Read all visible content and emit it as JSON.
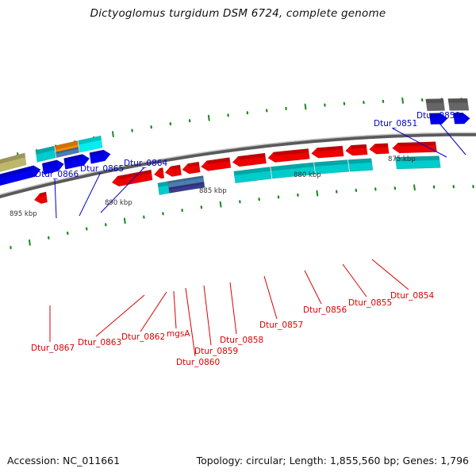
{
  "title": "Dictyoglomus turgidum DSM 6724, complete genome",
  "footer": {
    "accession": "Accession: NC_011661",
    "summary": "Topology: circular; Length: 1,855,560 bp; Genes: 1,796"
  },
  "colors": {
    "backbone": "#7a7a7a",
    "forward_cds": "#0000ee",
    "reverse_cds": "#ee0000",
    "tick": "#1a8a1a",
    "label_forward": "#0000cc",
    "label_reverse": "#dd0000",
    "cog_cyan": "#00cccc",
    "cog_light_cyan": "#00eeee",
    "cog_orange": "#ff8c00",
    "cog_steel": "#4a7fb0",
    "cog_indigo": "#3a3a90",
    "cog_olive": "#bdb76b",
    "cog_gray": "#666666"
  },
  "kbp_labels": [
    {
      "text": "895 kbp"
    },
    {
      "text": "890 kbp"
    },
    {
      "text": "885 kbp"
    },
    {
      "text": "880 kbp"
    },
    {
      "text": "875 kbp"
    }
  ],
  "forward_labels": [
    {
      "text": "Dtur_0866"
    },
    {
      "text": "Dtur_0865"
    },
    {
      "text": "Dtur_0864"
    },
    {
      "text": "Dtur_0851"
    },
    {
      "text": "Dtur_0850"
    }
  ],
  "reverse_labels": [
    {
      "text": "Dtur_0867"
    },
    {
      "text": "Dtur_0863"
    },
    {
      "text": "Dtur_0862"
    },
    {
      "text": "mgsA"
    },
    {
      "text": "Dtur_0860"
    },
    {
      "text": "Dtur_0859"
    },
    {
      "text": "Dtur_0858"
    },
    {
      "text": "Dtur_0857"
    },
    {
      "text": "Dtur_0856"
    },
    {
      "text": "Dtur_0855"
    },
    {
      "text": "Dtur_0854"
    }
  ]
}
